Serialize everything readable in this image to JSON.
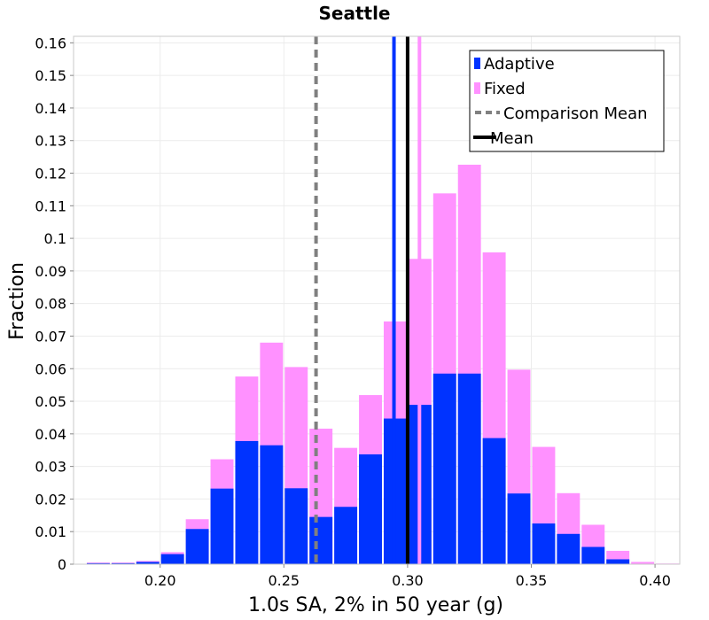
{
  "chart_data": {
    "type": "bar",
    "title": "Seattle",
    "xlabel": "1.0s SA, 2% in 50 year (g)",
    "ylabel": "Fraction",
    "xlim": [
      0.165,
      0.41
    ],
    "ylim": [
      0,
      0.162
    ],
    "bin_width": 0.01,
    "grid": true,
    "x_ticks": [
      0.2,
      0.25,
      0.3,
      0.35,
      0.4
    ],
    "x_tick_labels": [
      "0.20",
      "0.25",
      "0.30",
      "0.35",
      "0.40"
    ],
    "y_ticks": [
      0,
      0.01,
      0.02,
      0.03,
      0.04,
      0.05,
      0.06,
      0.07,
      0.08,
      0.09,
      0.1,
      0.11,
      0.12,
      0.13,
      0.14,
      0.15,
      0.16
    ],
    "y_tick_labels": [
      "0",
      "0.01",
      "0.02",
      "0.03",
      "0.04",
      "0.05",
      "0.06",
      "0.07",
      "0.08",
      "0.09",
      "0.1",
      "0.11",
      "0.12",
      "0.13",
      "0.14",
      "0.15",
      "0.16"
    ],
    "bin_centers": [
      0.175,
      0.185,
      0.195,
      0.205,
      0.215,
      0.225,
      0.235,
      0.245,
      0.255,
      0.265,
      0.275,
      0.285,
      0.295,
      0.305,
      0.315,
      0.325,
      0.335,
      0.345,
      0.355,
      0.365,
      0.375,
      0.385,
      0.395,
      0.405
    ],
    "series": [
      {
        "name": "Fixed",
        "color": "#ff91ff",
        "values": [
          0.0005,
          0.0005,
          0.001,
          0.0037,
          0.0138,
          0.0322,
          0.0576,
          0.068,
          0.0605,
          0.0416,
          0.0357,
          0.0519,
          0.0745,
          0.0937,
          0.1138,
          0.1226,
          0.0957,
          0.0597,
          0.036,
          0.0218,
          0.0121,
          0.0041,
          0.0007,
          0.0002
        ]
      },
      {
        "name": "Adaptive",
        "color": "#0033ff",
        "values": [
          0.0003,
          0.0003,
          0.0007,
          0.0031,
          0.0108,
          0.0232,
          0.0378,
          0.0365,
          0.0233,
          0.0145,
          0.0176,
          0.0337,
          0.0447,
          0.0489,
          0.0585,
          0.0585,
          0.0387,
          0.0217,
          0.0125,
          0.0093,
          0.0053,
          0.0015,
          0.0001,
          0
        ]
      }
    ],
    "vertical_lines": [
      {
        "name": "Comparison Mean",
        "x": 0.263,
        "color": "#808080",
        "style": "dashed"
      },
      {
        "name": "Adaptive Mean",
        "x": 0.2945,
        "color": "#0033ff",
        "style": "solid"
      },
      {
        "name": "Fixed Mean",
        "x": 0.3048,
        "color": "#ff91ff",
        "style": "solid"
      },
      {
        "name": "Mean",
        "x": 0.3,
        "color": "#000000",
        "style": "solid"
      }
    ],
    "legend": {
      "position": "top-right",
      "entries": [
        {
          "label": "Adaptive",
          "color": "#0033ff",
          "kind": "box"
        },
        {
          "label": "Fixed",
          "color": "#ff91ff",
          "kind": "box"
        },
        {
          "label": "Comparison Mean",
          "color": "#808080",
          "kind": "dashed"
        },
        {
          "label": "Mean",
          "color": "#000000",
          "kind": "line"
        }
      ]
    }
  }
}
